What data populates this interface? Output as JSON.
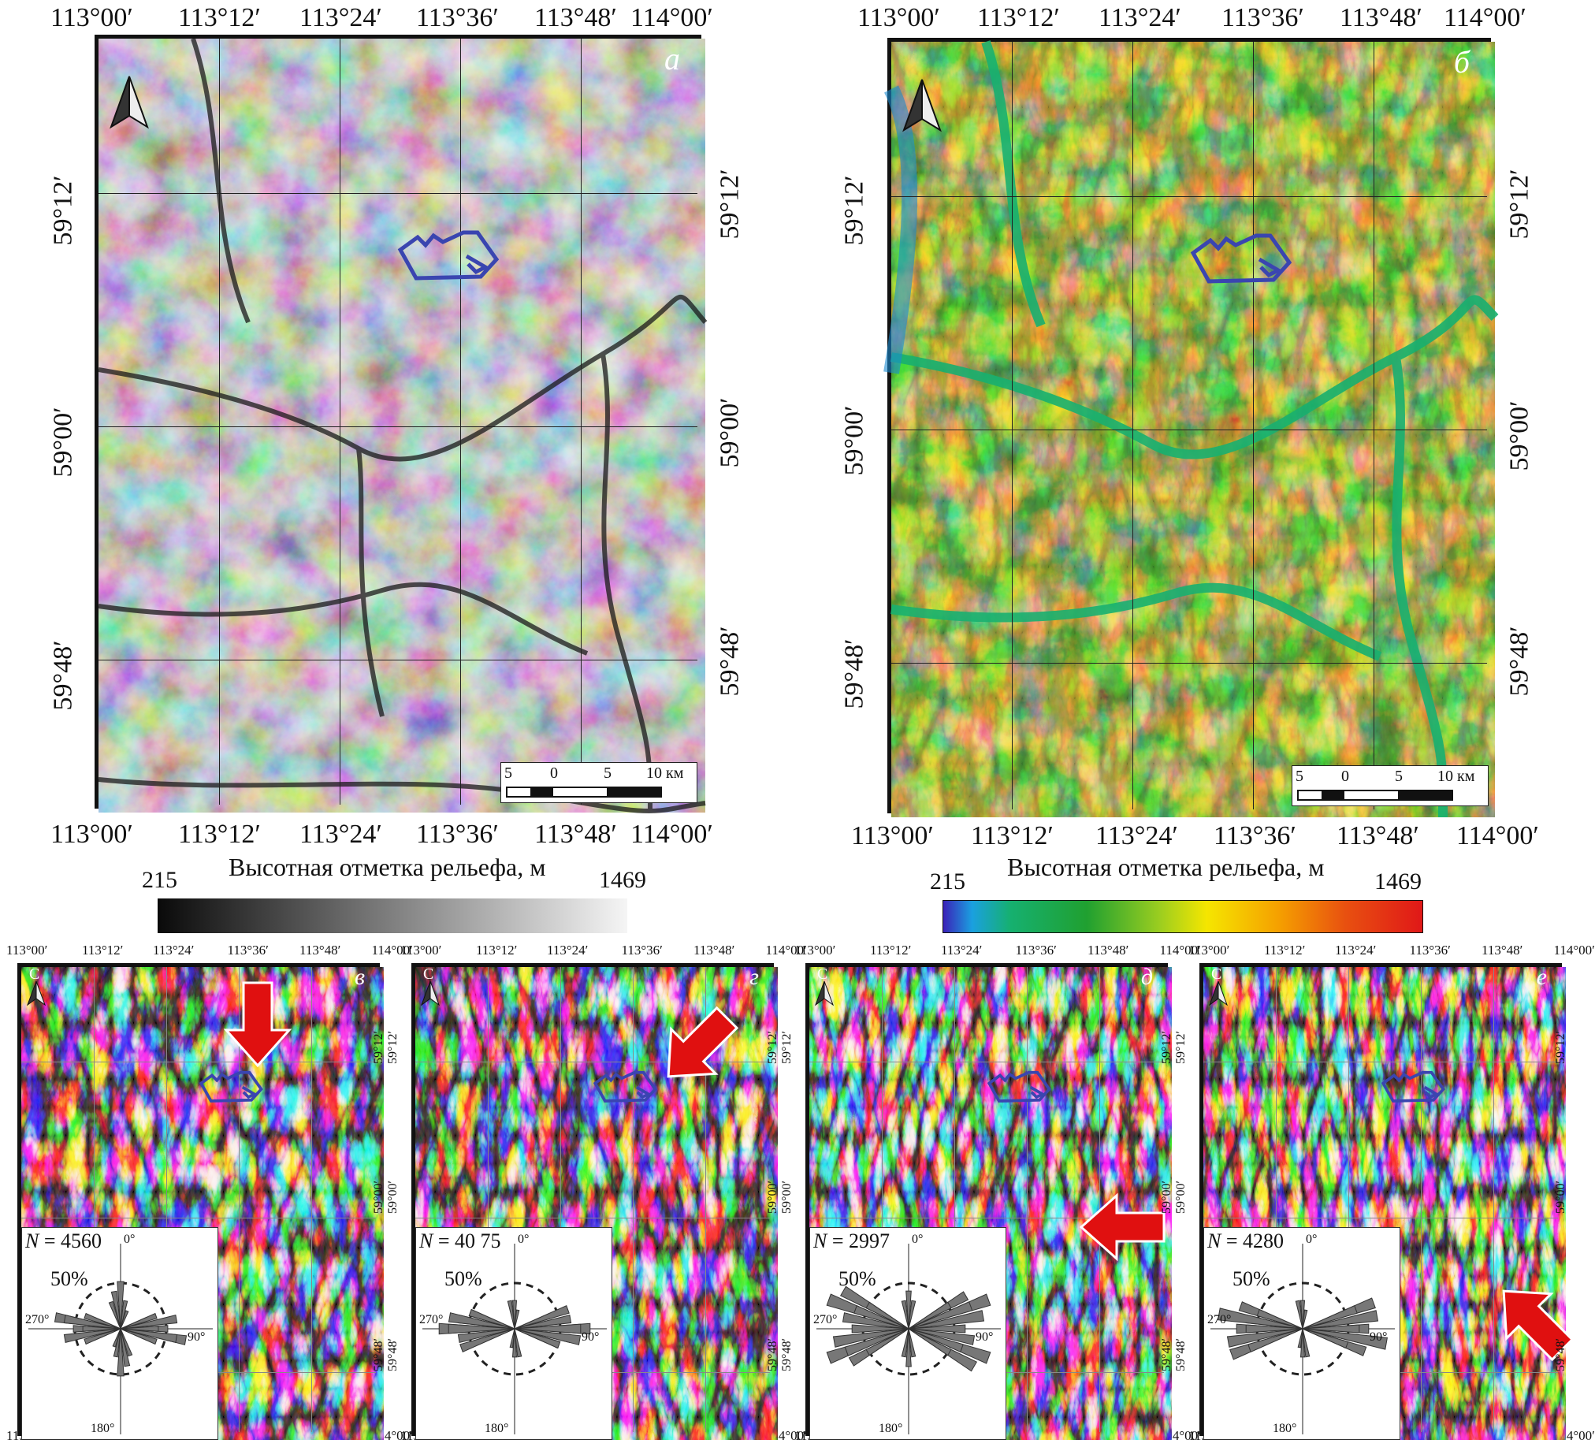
{
  "panel_a": {
    "letter": "a",
    "lon_ticks": [
      "113°00′",
      "113°12′",
      "113°24′",
      "113°36′",
      "113°48′",
      "114°00′"
    ],
    "lat_ticks": [
      "59°12′",
      "59°00′",
      "59°48′"
    ],
    "scale": {
      "labels": [
        "5",
        "0",
        "5",
        "10 км"
      ]
    }
  },
  "panel_b": {
    "letter": "б",
    "lon_ticks": [
      "113°00′",
      "113°12′",
      "113°24′",
      "113°36′",
      "113°48′",
      "114°00′"
    ],
    "lat_ticks": [
      "59°12′",
      "59°00′",
      "59°48′"
    ],
    "scale": {
      "labels": [
        "5",
        "0",
        "5",
        "10 км"
      ]
    }
  },
  "colorbar_gray": {
    "title": "Высотная отметка рельефа, м",
    "min": "215",
    "max": "1469",
    "colors": [
      "#0a0a0a",
      "#f5f5f5"
    ]
  },
  "colorbar_color": {
    "title": "Высотная отметка рельефа, м",
    "min": "215",
    "max": "1469",
    "colors": [
      "#3a22b8",
      "#1aa0e0",
      "#16b070",
      "#20a030",
      "#9acd20",
      "#f5e600",
      "#f5a000",
      "#e85010",
      "#e01818"
    ]
  },
  "outline_color": "#3a45b0",
  "arrow_color": "#e01010",
  "small_panels": [
    {
      "letter": "в",
      "north": "С",
      "n_label": "N",
      "n_value": " = 4560",
      "lon_ticks": [
        "113°00′",
        "113°12′",
        "113°24′",
        "113°36′",
        "113°48′",
        "114°00′"
      ],
      "lat_ticks": [
        "59°12′",
        "59°00′",
        "59°48′"
      ],
      "rose": {
        "zero": "0°",
        "ninety": "90°",
        "one80": "180°",
        "two70": "270°",
        "pct": "50%"
      }
    },
    {
      "letter": "г",
      "north": "С",
      "n_label": "N",
      "n_value": " = 40 75",
      "lon_ticks": [
        "113°00′",
        "113°12′",
        "113°24′",
        "113°36′",
        "113°48′",
        "114°00′"
      ],
      "lat_ticks": [
        "59°12′",
        "59°00′",
        "59°48′"
      ],
      "rose": {
        "zero": "0°",
        "ninety": "90°",
        "one80": "180°",
        "two70": "270°",
        "pct": "50%"
      }
    },
    {
      "letter": "д",
      "north": "С",
      "n_label": "N",
      "n_value": " = 2997",
      "lon_ticks": [
        "113°00′",
        "113°12′",
        "113°24′",
        "113°36′",
        "113°48′",
        "114°00′"
      ],
      "lat_ticks": [
        "59°12′",
        "59°00′",
        "59°48′"
      ],
      "rose": {
        "zero": "0°",
        "ninety": "90°",
        "one80": "180°",
        "two70": "270°",
        "pct": "50%"
      }
    },
    {
      "letter": "е",
      "north": "С",
      "n_label": "N",
      "n_value": " = 4280",
      "lon_ticks": [
        "113°00′",
        "113°12′",
        "113°24′",
        "113°36′",
        "113°48′",
        "114°00′"
      ],
      "lat_ticks": [
        "59°12′",
        "59°00′",
        "59°48′"
      ],
      "rose": {
        "zero": "0°",
        "ninety": "90°",
        "one80": "180°",
        "two70": "270°",
        "pct": "50%"
      }
    }
  ]
}
